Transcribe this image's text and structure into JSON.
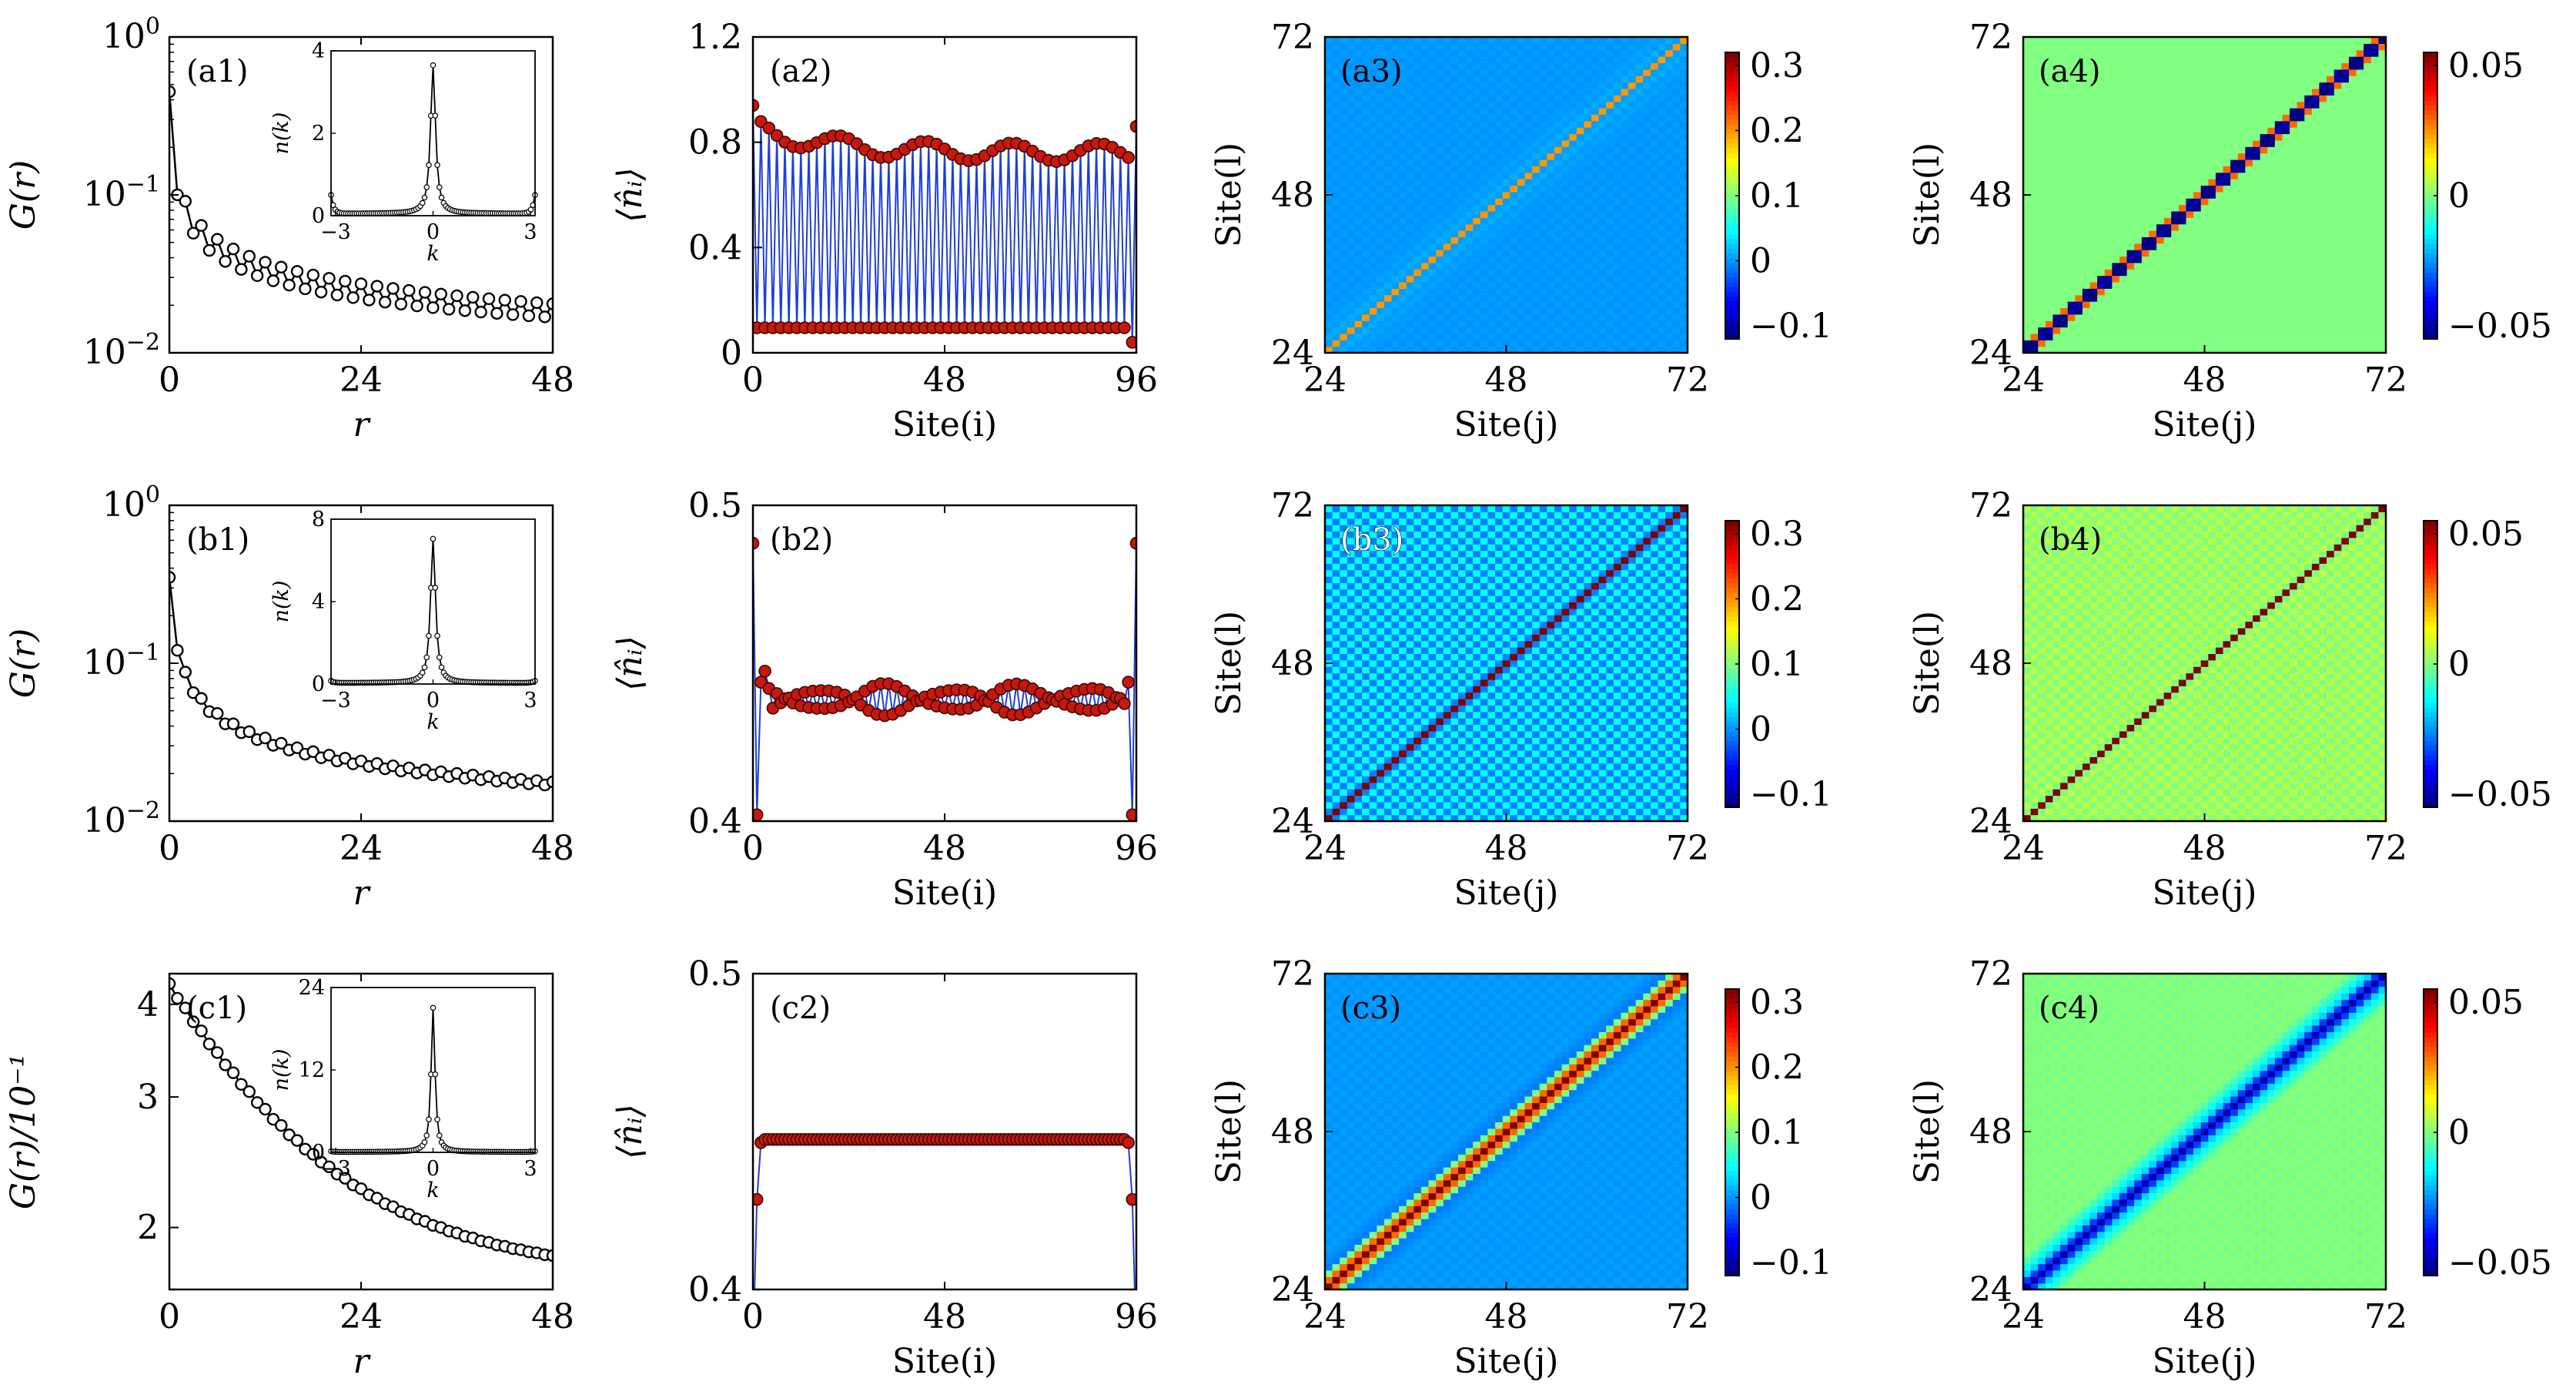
{
  "figure": {
    "rows": [
      "a",
      "b",
      "c"
    ],
    "n_sites": 96
  },
  "chart_data": [
    {
      "id": "a1",
      "type": "line",
      "panel_label": "(a1)",
      "xlabel": "r",
      "ylabel": "G(r)",
      "yscale": "log",
      "xlim": [
        0,
        48
      ],
      "ylim": [
        0.01,
        1
      ],
      "x_ticks": [
        "0",
        "24",
        "48"
      ],
      "y_ticks": [
        {
          "base": "10",
          "exp": "0"
        },
        {
          "base": "10",
          "exp": "−1"
        },
        {
          "base": "10",
          "exp": "−2"
        }
      ],
      "model": {
        "kind": "power",
        "start": 0.45,
        "A": 0.11,
        "p": 0.55,
        "osc": 0.28
      },
      "inset": {
        "type": "line",
        "xlabel": "k",
        "ylabel": "n(k)",
        "xlim": [
          -3.1416,
          3.1416
        ],
        "ylim": [
          0,
          4
        ],
        "x_ticks": [
          "−3",
          "0",
          "3"
        ],
        "y_ticks": [
          "0",
          "2",
          "4"
        ],
        "peak": 3.6,
        "edge": 0.45,
        "width": 0.05
      }
    },
    {
      "id": "a2",
      "type": "line",
      "panel_label": "(a2)",
      "xlabel": "Site(i)",
      "ylabel": "⟨n̂ᵢ⟩",
      "xlim": [
        0,
        96
      ],
      "ylim": [
        0,
        1.2
      ],
      "x_ticks": [
        "0",
        "48",
        "96"
      ],
      "y_ticks": [
        "0",
        "0.4",
        "0.8",
        "1.2"
      ],
      "model": {
        "kind": "alternating",
        "high": 0.76,
        "low": 0.095,
        "first": 0.94,
        "last": 0.86,
        "last_low": 0.04,
        "wave": 0.035
      }
    },
    {
      "id": "a3",
      "type": "heatmap",
      "panel_label": "(a3)",
      "xlabel": "Site(j)",
      "ylabel": "Site(l)",
      "range": [
        24,
        72
      ],
      "x_ticks": [
        "24",
        "48",
        "72"
      ],
      "y_ticks": [
        "24",
        "48",
        "72"
      ],
      "colorbar": {
        "min": -0.12,
        "max": 0.32,
        "ticks": [
          "0.3",
          "0.2",
          "0.1",
          "0",
          "−0.1"
        ],
        "tick_values": [
          0.3,
          0.2,
          0.1,
          0,
          -0.1
        ]
      },
      "model": {
        "kind": "diag",
        "diag": 0.2,
        "bg": 0.0,
        "checker": 0.01,
        "near": 0.02
      }
    },
    {
      "id": "a4",
      "type": "heatmap",
      "panel_label": "(a4)",
      "xlabel": "Site(j)",
      "ylabel": "Site(l)",
      "range": [
        24,
        72
      ],
      "x_ticks": [
        "24",
        "48",
        "72"
      ],
      "y_ticks": [
        "24",
        "48",
        "72"
      ],
      "colorbar": {
        "min": -0.055,
        "max": 0.055,
        "ticks": [
          "0.05",
          "0",
          "−0.05"
        ],
        "tick_values": [
          0.05,
          0,
          -0.05
        ]
      },
      "model": {
        "kind": "stair",
        "bg": 0.0
      }
    },
    {
      "id": "b1",
      "type": "line",
      "panel_label": "(b1)",
      "xlabel": "r",
      "ylabel": "G(r)",
      "yscale": "log",
      "xlim": [
        0,
        48
      ],
      "ylim": [
        0.01,
        1
      ],
      "x_ticks": [
        "0",
        "24",
        "48"
      ],
      "y_ticks": [
        {
          "base": "10",
          "exp": "0"
        },
        {
          "base": "10",
          "exp": "−1"
        },
        {
          "base": "10",
          "exp": "−2"
        }
      ],
      "model": {
        "kind": "power",
        "start": 0.35,
        "A": 0.12,
        "p": 0.6,
        "osc": 0.08
      },
      "inset": {
        "type": "line",
        "xlabel": "k",
        "ylabel": "n(k)",
        "xlim": [
          -3.1416,
          3.1416
        ],
        "ylim": [
          0,
          8
        ],
        "x_ticks": [
          "−3",
          "0",
          "3"
        ],
        "y_ticks": [
          "0",
          "4",
          "8"
        ],
        "peak": 7.0,
        "edge": 0.1,
        "width": 0.05
      }
    },
    {
      "id": "b2",
      "type": "line",
      "panel_label": "(b2)",
      "xlabel": "Site(i)",
      "ylabel": "⟨n̂ᵢ⟩",
      "xlim": [
        0,
        96
      ],
      "ylim": [
        0.4,
        0.5
      ],
      "x_ticks": [
        "0",
        "48",
        "96"
      ],
      "y_ticks": [
        "0.4",
        "0.5"
      ],
      "model": {
        "kind": "wiggle",
        "mean": 0.4385,
        "amp": 0.004,
        "edge_hi": 0.488,
        "edge_lo": 0.402
      }
    },
    {
      "id": "b3",
      "type": "heatmap",
      "panel_label": "(b3)",
      "xlabel": "Site(j)",
      "ylabel": "Site(l)",
      "range": [
        24,
        72
      ],
      "x_ticks": [
        "24",
        "48",
        "72"
      ],
      "y_ticks": [
        "24",
        "48",
        "72"
      ],
      "colorbar": {
        "min": -0.12,
        "max": 0.32,
        "ticks": [
          "0.3",
          "0.2",
          "0.1",
          "0",
          "−0.1"
        ],
        "tick_values": [
          0.3,
          0.2,
          0.1,
          0,
          -0.1
        ]
      },
      "model": {
        "kind": "checker",
        "diag": 0.32,
        "a": -0.01,
        "b": 0.045
      }
    },
    {
      "id": "b4",
      "type": "heatmap",
      "panel_label": "(b4)",
      "xlabel": "Site(j)",
      "ylabel": "Site(l)",
      "range": [
        24,
        72
      ],
      "x_ticks": [
        "24",
        "48",
        "72"
      ],
      "y_ticks": [
        "24",
        "48",
        "72"
      ],
      "colorbar": {
        "min": -0.055,
        "max": 0.055,
        "ticks": [
          "0.05",
          "0",
          "−0.05"
        ],
        "tick_values": [
          0.05,
          0,
          -0.05
        ]
      },
      "model": {
        "kind": "checker",
        "diag": 0.055,
        "a": 0.0,
        "b": 0.006
      }
    },
    {
      "id": "c1",
      "type": "line",
      "panel_label": "(c1)",
      "xlabel": "r",
      "ylabel": "G(r)/10⁻¹",
      "yscale": "log",
      "xlim": [
        0,
        48
      ],
      "ylim": [
        1.65,
        4.4
      ],
      "x_ticks": [
        "0",
        "24",
        "48"
      ],
      "y_ticks": [
        "4",
        "3",
        "2"
      ],
      "y_tick_values": [
        4,
        3,
        2
      ],
      "model": {
        "kind": "decay",
        "start": 4.25,
        "end": 1.72,
        "rate": 0.065,
        "osc": 0.0
      },
      "inset": {
        "type": "line",
        "xlabel": "k",
        "ylabel": "n(k)",
        "xlim": [
          -3.1416,
          3.1416
        ],
        "ylim": [
          0,
          24
        ],
        "x_ticks": [
          "−3",
          "0",
          "3"
        ],
        "y_ticks": [
          "0",
          "12",
          "24"
        ],
        "peak": 21.0,
        "edge": 0.1,
        "width": 0.03
      }
    },
    {
      "id": "c2",
      "type": "line",
      "panel_label": "(c2)",
      "xlabel": "Site(i)",
      "ylabel": "⟨n̂ᵢ⟩",
      "xlim": [
        0,
        96
      ],
      "ylim": [
        0.4,
        0.5
      ],
      "x_ticks": [
        "0",
        "48",
        "96"
      ],
      "y_ticks": [
        "0.4",
        "0.5"
      ],
      "model": {
        "kind": "flat",
        "mean": 0.4475,
        "edge_lo": 0.4285,
        "edge_mid": 0.4465
      }
    },
    {
      "id": "c3",
      "type": "heatmap",
      "panel_label": "(c3)",
      "xlabel": "Site(j)",
      "ylabel": "Site(l)",
      "range": [
        24,
        72
      ],
      "x_ticks": [
        "24",
        "48",
        "72"
      ],
      "y_ticks": [
        "24",
        "48",
        "72"
      ],
      "colorbar": {
        "min": -0.12,
        "max": 0.32,
        "ticks": [
          "0.3",
          "0.2",
          "0.1",
          "0",
          "−0.1"
        ],
        "tick_values": [
          0.3,
          0.2,
          0.1,
          0,
          -0.1
        ]
      },
      "model": {
        "kind": "band",
        "diag": 0.32,
        "bg": 0.0,
        "halo": -0.005,
        "checker": 0.004
      }
    },
    {
      "id": "c4",
      "type": "heatmap",
      "panel_label": "(c4)",
      "xlabel": "Site(j)",
      "ylabel": "Site(l)",
      "range": [
        24,
        72
      ],
      "x_ticks": [
        "24",
        "48",
        "72"
      ],
      "y_ticks": [
        "24",
        "48",
        "72"
      ],
      "colorbar": {
        "min": -0.055,
        "max": 0.055,
        "ticks": [
          "0.05",
          "0",
          "−0.05"
        ],
        "tick_values": [
          0.05,
          0,
          -0.05
        ]
      },
      "model": {
        "kind": "band4",
        "diag": -0.05,
        "bg": 0.0,
        "halo": -0.012
      }
    }
  ]
}
